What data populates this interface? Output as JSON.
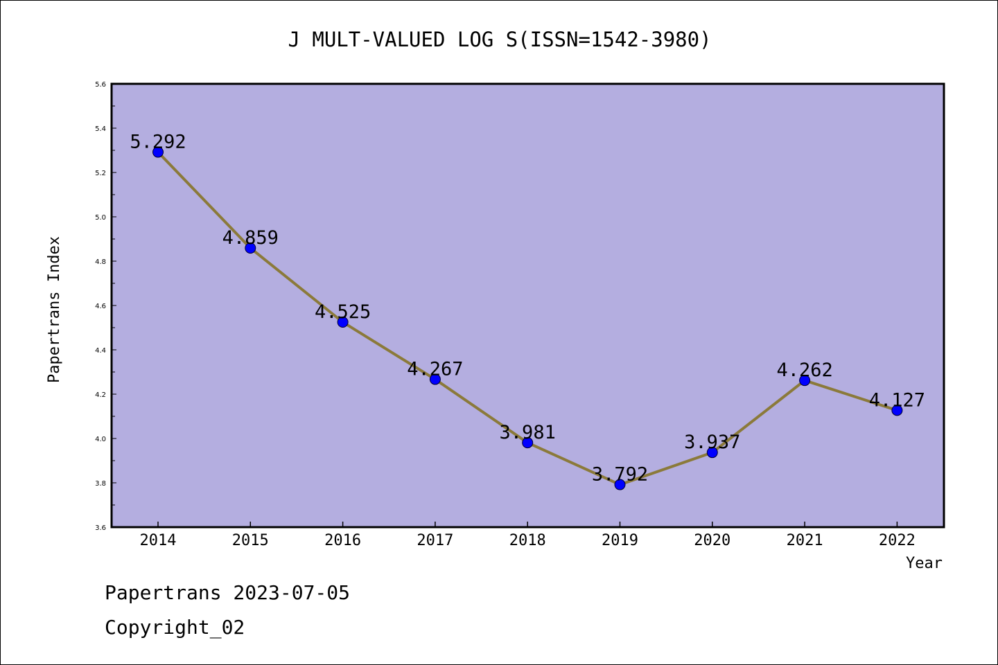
{
  "chart_data": {
    "type": "line",
    "title": "J MULT-VALUED LOG S(ISSN=1542-3980)",
    "xlabel": "Year",
    "ylabel": "Papertrans Index",
    "x": [
      "2014",
      "2015",
      "2016",
      "2017",
      "2018",
      "2019",
      "2020",
      "2021",
      "2022"
    ],
    "values": [
      5.292,
      4.859,
      4.525,
      4.267,
      3.981,
      3.792,
      3.937,
      4.262,
      4.127
    ],
    "data_labels": [
      "5.292",
      "4.859",
      "4.525",
      "4.267",
      "3.981",
      "3.792",
      "3.937",
      "4.262",
      "4.127"
    ],
    "ylim": [
      3.6,
      5.6
    ],
    "yticks": [
      "3.6",
      "3.8",
      "4.0",
      "4.2",
      "4.4",
      "4.6",
      "4.8",
      "5.0",
      "5.2",
      "5.4",
      "5.6"
    ],
    "grid": false,
    "colors": {
      "plot_background": "#b4aee0",
      "line": "#8b7a3a",
      "marker": "#0000ff"
    }
  },
  "footer": {
    "line1": "Papertrans 2023-07-05",
    "line2": "Copyright_02"
  }
}
